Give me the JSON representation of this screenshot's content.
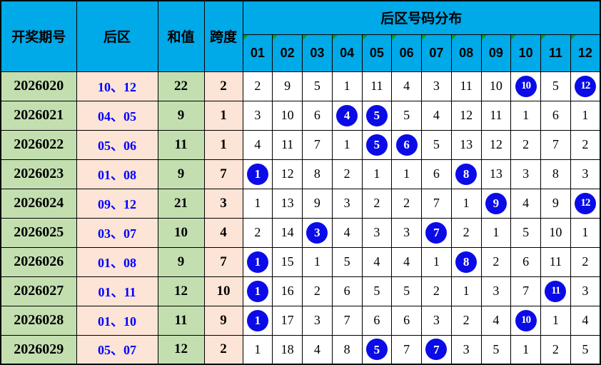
{
  "chart_data": {
    "type": "table",
    "title": "后区号码分布",
    "header": {
      "period": "开奖期号",
      "back_zone": "后区",
      "sum": "和值",
      "span": "跨度",
      "distribution_title": "后区号码分布"
    },
    "number_columns": [
      "01",
      "02",
      "03",
      "04",
      "05",
      "06",
      "07",
      "08",
      "09",
      "10",
      "11",
      "12"
    ],
    "rows": [
      {
        "period": "2026020",
        "back_zone": "10、12",
        "sum": "22",
        "span": "2",
        "counts": [
          "2",
          "9",
          "5",
          "1",
          "11",
          "4",
          "3",
          "11",
          "10",
          "10",
          "5",
          "12"
        ],
        "hit_numbers": [
          "10",
          "12"
        ]
      },
      {
        "period": "2026021",
        "back_zone": "04、05",
        "sum": "9",
        "span": "1",
        "counts": [
          "3",
          "10",
          "6",
          "4",
          "5",
          "5",
          "4",
          "12",
          "11",
          "1",
          "6",
          "1"
        ],
        "hit_numbers": [
          "04",
          "05"
        ]
      },
      {
        "period": "2026022",
        "back_zone": "05、06",
        "sum": "11",
        "span": "1",
        "counts": [
          "4",
          "11",
          "7",
          "1",
          "5",
          "6",
          "5",
          "13",
          "12",
          "2",
          "7",
          "2"
        ],
        "hit_numbers": [
          "05",
          "06"
        ]
      },
      {
        "period": "2026023",
        "back_zone": "01、08",
        "sum": "9",
        "span": "7",
        "counts": [
          "1",
          "12",
          "8",
          "2",
          "1",
          "1",
          "6",
          "8",
          "13",
          "3",
          "8",
          "3"
        ],
        "hit_numbers": [
          "01",
          "08"
        ]
      },
      {
        "period": "2026024",
        "back_zone": "09、12",
        "sum": "21",
        "span": "3",
        "counts": [
          "1",
          "13",
          "9",
          "3",
          "2",
          "2",
          "7",
          "1",
          "9",
          "4",
          "9",
          "12"
        ],
        "hit_numbers": [
          "09",
          "12"
        ]
      },
      {
        "period": "2026025",
        "back_zone": "03、07",
        "sum": "10",
        "span": "4",
        "counts": [
          "2",
          "14",
          "3",
          "4",
          "3",
          "3",
          "7",
          "2",
          "1",
          "5",
          "10",
          "1"
        ],
        "hit_numbers": [
          "03",
          "07"
        ]
      },
      {
        "period": "2026026",
        "back_zone": "01、08",
        "sum": "9",
        "span": "7",
        "counts": [
          "1",
          "15",
          "1",
          "5",
          "4",
          "4",
          "1",
          "8",
          "2",
          "6",
          "11",
          "2"
        ],
        "hit_numbers": [
          "01",
          "08"
        ]
      },
      {
        "period": "2026027",
        "back_zone": "01、11",
        "sum": "12",
        "span": "10",
        "counts": [
          "1",
          "16",
          "2",
          "6",
          "5",
          "5",
          "2",
          "1",
          "3",
          "7",
          "11",
          "3"
        ],
        "hit_numbers": [
          "01",
          "11"
        ]
      },
      {
        "period": "2026028",
        "back_zone": "01、10",
        "sum": "11",
        "span": "9",
        "counts": [
          "1",
          "17",
          "3",
          "7",
          "6",
          "6",
          "3",
          "2",
          "4",
          "10",
          "1",
          "4"
        ],
        "hit_numbers": [
          "01",
          "10"
        ]
      },
      {
        "period": "2026029",
        "back_zone": "05、07",
        "sum": "12",
        "span": "2",
        "counts": [
          "1",
          "18",
          "4",
          "8",
          "5",
          "7",
          "7",
          "3",
          "5",
          "1",
          "2",
          "5"
        ],
        "hit_numbers": [
          "05",
          "07"
        ]
      }
    ]
  },
  "colors": {
    "header_blue": "#00a9e8",
    "green_cell": "#c3dfb0",
    "peach_cell": "#fce4d6",
    "ball_blue": "#0b0be8",
    "back_zone_text": "#0000ff",
    "marker_green": "#149a14",
    "grid_border": "#000000"
  }
}
